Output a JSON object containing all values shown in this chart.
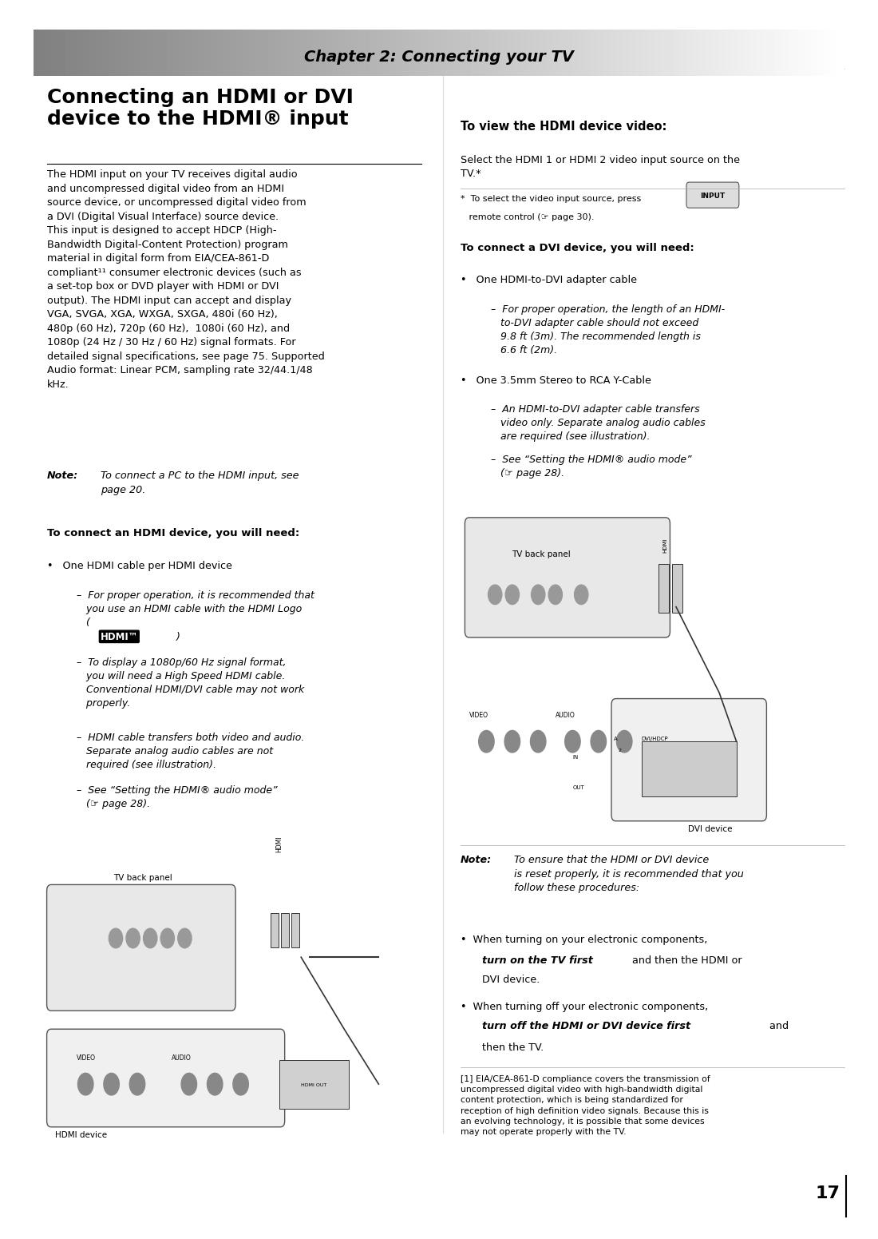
{
  "page_width": 10.8,
  "page_height": 15.32,
  "bg_color": "#ffffff",
  "header_text": "Chapter 2: Connecting your TV",
  "header_font_size": 14,
  "page_number": "17"
}
